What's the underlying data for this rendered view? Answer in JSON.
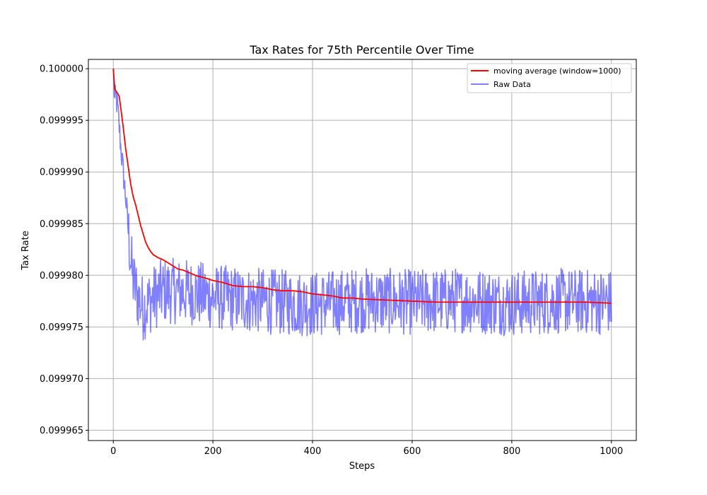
{
  "chart_data": {
    "type": "line",
    "title": "Tax Rates for 75th Percentile Over Time",
    "xlabel": "Steps",
    "ylabel": "Tax Rate",
    "xlim": [
      -50,
      1050
    ],
    "ylim": [
      0.099964,
      0.1000009
    ],
    "xticks": [
      0,
      200,
      400,
      600,
      800,
      1000
    ],
    "xtick_labels": [
      "0",
      "200",
      "400",
      "600",
      "800",
      "1000"
    ],
    "yticks": [
      0.099965,
      0.09997,
      0.099975,
      0.09998,
      0.099985,
      0.09999,
      0.099995,
      0.1
    ],
    "ytick_labels": [
      "0.099965",
      "0.099970",
      "0.099975",
      "0.099980",
      "0.099985",
      "0.099990",
      "0.099995",
      "0.100000"
    ],
    "grid": true,
    "legend_position": "top-right",
    "series": [
      {
        "name": "moving average (window=1000)",
        "color": "#ff0000",
        "opacity": 1.0,
        "x": [
          0,
          3,
          6,
          10,
          12,
          15,
          20,
          25,
          30,
          35,
          40,
          45,
          50,
          55,
          60,
          65,
          70,
          75,
          80,
          90,
          100,
          110,
          120,
          130,
          140,
          150,
          160,
          170,
          180,
          200,
          220,
          240,
          260,
          280,
          300,
          320,
          340,
          360,
          380,
          400,
          420,
          440,
          460,
          480,
          500,
          550,
          600,
          650,
          700,
          750,
          800,
          850,
          900,
          950,
          1000
        ],
        "y": [
          0.1,
          0.099998,
          0.0999978,
          0.0999975,
          0.0999973,
          0.0999962,
          0.0999943,
          0.0999922,
          0.0999905,
          0.0999888,
          0.0999876,
          0.0999868,
          0.0999858,
          0.0999848,
          0.099984,
          0.0999832,
          0.0999827,
          0.0999823,
          0.099982,
          0.0999817,
          0.0999815,
          0.0999812,
          0.0999809,
          0.0999806,
          0.0999805,
          0.0999803,
          0.0999801,
          0.0999799,
          0.0999798,
          0.0999795,
          0.0999793,
          0.099979,
          0.0999789,
          0.0999789,
          0.0999788,
          0.0999786,
          0.0999785,
          0.0999785,
          0.0999784,
          0.0999782,
          0.0999781,
          0.099978,
          0.0999778,
          0.0999778,
          0.0999777,
          0.0999776,
          0.0999775,
          0.0999774,
          0.0999774,
          0.0999774,
          0.0999774,
          0.0999774,
          0.0999774,
          0.0999774,
          0.0999773
        ]
      },
      {
        "name": "Raw Data",
        "color": "#0000ff",
        "opacity": 0.5,
        "generated": "noisy",
        "anchors_x": [
          0,
          3,
          6,
          10,
          15,
          20,
          25,
          30,
          35,
          40,
          50,
          60,
          80,
          100,
          150,
          200,
          300,
          400,
          500,
          600,
          700,
          800,
          900,
          1000
        ],
        "anchors_y": [
          0.1,
          0.0999968,
          0.0999972,
          0.0999955,
          0.0999925,
          0.09999,
          0.0999875,
          0.0999845,
          0.0999815,
          0.0999795,
          0.0999778,
          0.0999768,
          0.0999778,
          0.0999785,
          0.0999784,
          0.0999779,
          0.0999775,
          0.0999772,
          0.0999776,
          0.0999774,
          0.0999776,
          0.0999773,
          0.0999775,
          0.0999774
        ],
        "noise_amplitude": 3.2e-06,
        "points": 1001,
        "ymin_observed": 0.0999659,
        "ymax_observed": 0.1
      }
    ]
  }
}
